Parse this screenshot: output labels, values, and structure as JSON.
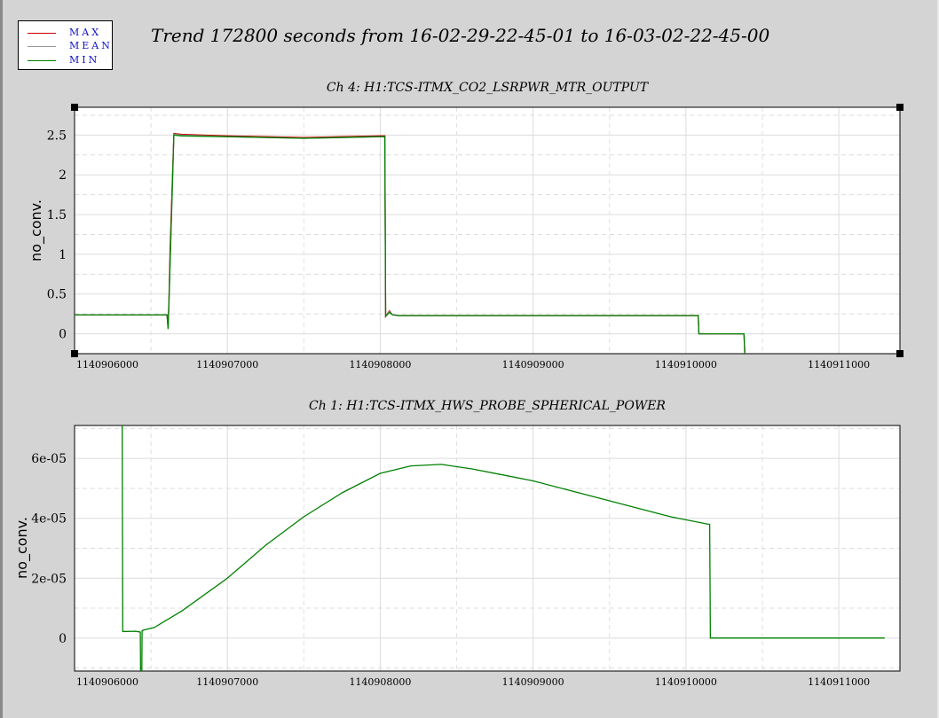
{
  "title": "Trend 172800 seconds from 16-02-29-22-45-01 to 16-03-02-22-45-00",
  "legend": [
    {
      "label": "MAX",
      "color": "#cc0000"
    },
    {
      "label": "MEAN",
      "color": "#999999"
    },
    {
      "label": "MIN",
      "color": "#008000"
    }
  ],
  "chart_data": [
    {
      "type": "line",
      "title": "Ch 4: H1:TCS-ITMX_CO2_LSRPWR_MTR_OUTPUT",
      "ylabel": "no_conv.",
      "xlim": [
        1140906000,
        1140911400
      ],
      "ylim": [
        -0.25,
        2.85
      ],
      "xticks": [
        1140906000,
        1140907000,
        1140908000,
        1140909000,
        1140910000,
        1140911000
      ],
      "xtick_labels": [
        "1140906000",
        "1140907000",
        "1140908000",
        "1140909000",
        "1140910000",
        "1140911000"
      ],
      "yticks": [
        0,
        0.5,
        1,
        1.5,
        2,
        2.5
      ],
      "ytick_labels": [
        "0",
        "0.5",
        "1",
        "1.5",
        "2",
        "2.5"
      ],
      "grid": true,
      "series": [
        {
          "name": "MAX",
          "color": "#cc0000",
          "x": [
            1140906000,
            1140906605,
            1140906612,
            1140906618,
            1140906625,
            1140906650,
            1140906700,
            1140907000,
            1140907500,
            1140908000,
            1140908030,
            1140908035,
            1140908060,
            1140908080,
            1140908120,
            1140908500,
            1140909000,
            1140910000,
            1140910080,
            1140910085,
            1140910380,
            1140910385
          ],
          "y": [
            0.24,
            0.24,
            0.08,
            0.45,
            1.05,
            2.52,
            2.51,
            2.49,
            2.47,
            2.49,
            2.49,
            0.22,
            0.29,
            0.24,
            0.23,
            0.23,
            0.23,
            0.23,
            0.23,
            0,
            0,
            -0.25
          ]
        },
        {
          "name": "MEAN",
          "color": "#999999",
          "x": [
            1140906000,
            1140906605,
            1140906612,
            1140906618,
            1140906650,
            1140906700,
            1140907000,
            1140907500,
            1140908000,
            1140908030,
            1140908035,
            1140908060,
            1140908080,
            1140908120,
            1140910080,
            1140910085,
            1140910380,
            1140910385
          ],
          "y": [
            0.24,
            0.24,
            0.07,
            0.42,
            2.51,
            2.5,
            2.48,
            2.46,
            2.48,
            2.48,
            0.22,
            0.28,
            0.24,
            0.23,
            0.23,
            0,
            0,
            -0.25
          ]
        },
        {
          "name": "MIN",
          "color": "#008000",
          "x": [
            1140906000,
            1140906605,
            1140906612,
            1140906618,
            1140906650,
            1140906700,
            1140907000,
            1140907500,
            1140908000,
            1140908030,
            1140908035,
            1140908060,
            1140908080,
            1140908120,
            1140910080,
            1140910085,
            1140910380,
            1140910385
          ],
          "y": [
            0.24,
            0.24,
            0.06,
            0.4,
            2.5,
            2.49,
            2.48,
            2.46,
            2.48,
            2.48,
            0.22,
            0.27,
            0.24,
            0.23,
            0.23,
            0,
            0,
            -0.25
          ]
        }
      ]
    },
    {
      "type": "line",
      "title": "Ch 1: H1:TCS-ITMX_HWS_PROBE_SPHERICAL_POWER",
      "ylabel": "no_conv.",
      "xlim": [
        1140906000,
        1140911400
      ],
      "ylim": [
        -1.1e-05,
        7.1e-05
      ],
      "xticks": [
        1140906000,
        1140907000,
        1140908000,
        1140909000,
        1140910000,
        1140911000
      ],
      "xtick_labels": [
        "1140906000",
        "1140907000",
        "1140908000",
        "1140909000",
        "1140910000",
        "1140911000"
      ],
      "yticks": [
        0,
        2e-05,
        4e-05,
        6e-05
      ],
      "ytick_labels": [
        "0",
        "2e-05",
        "4e-05",
        "6e-05"
      ],
      "grid": true,
      "series": [
        {
          "name": "MIN",
          "color": "#008000",
          "x": [
            1140906310,
            1140906312,
            1140906315,
            1140906400,
            1140906430,
            1140906432,
            1140906440,
            1140906442,
            1140906460,
            1140906520,
            1140906700,
            1140907000,
            1140907250,
            1140907500,
            1140907750,
            1140908000,
            1140908200,
            1140908400,
            1140908600,
            1140908800,
            1140909000,
            1140909300,
            1140909600,
            1140909900,
            1140910150,
            1140910155,
            1140910160,
            1140911300
          ],
          "y": [
            7.1e-05,
            7.1e-05,
            2.2e-06,
            2.3e-06,
            2e-06,
            -1.1e-05,
            -1.1e-05,
            2.5e-06,
            2.8e-06,
            3.5e-06,
            9e-06,
            2e-05,
            3.1e-05,
            4.05e-05,
            4.85e-05,
            5.5e-05,
            5.75e-05,
            5.8e-05,
            5.65e-05,
            5.45e-05,
            5.25e-05,
            4.85e-05,
            4.45e-05,
            4.05e-05,
            3.8e-05,
            3.8e-05,
            0,
            0
          ]
        }
      ]
    }
  ]
}
